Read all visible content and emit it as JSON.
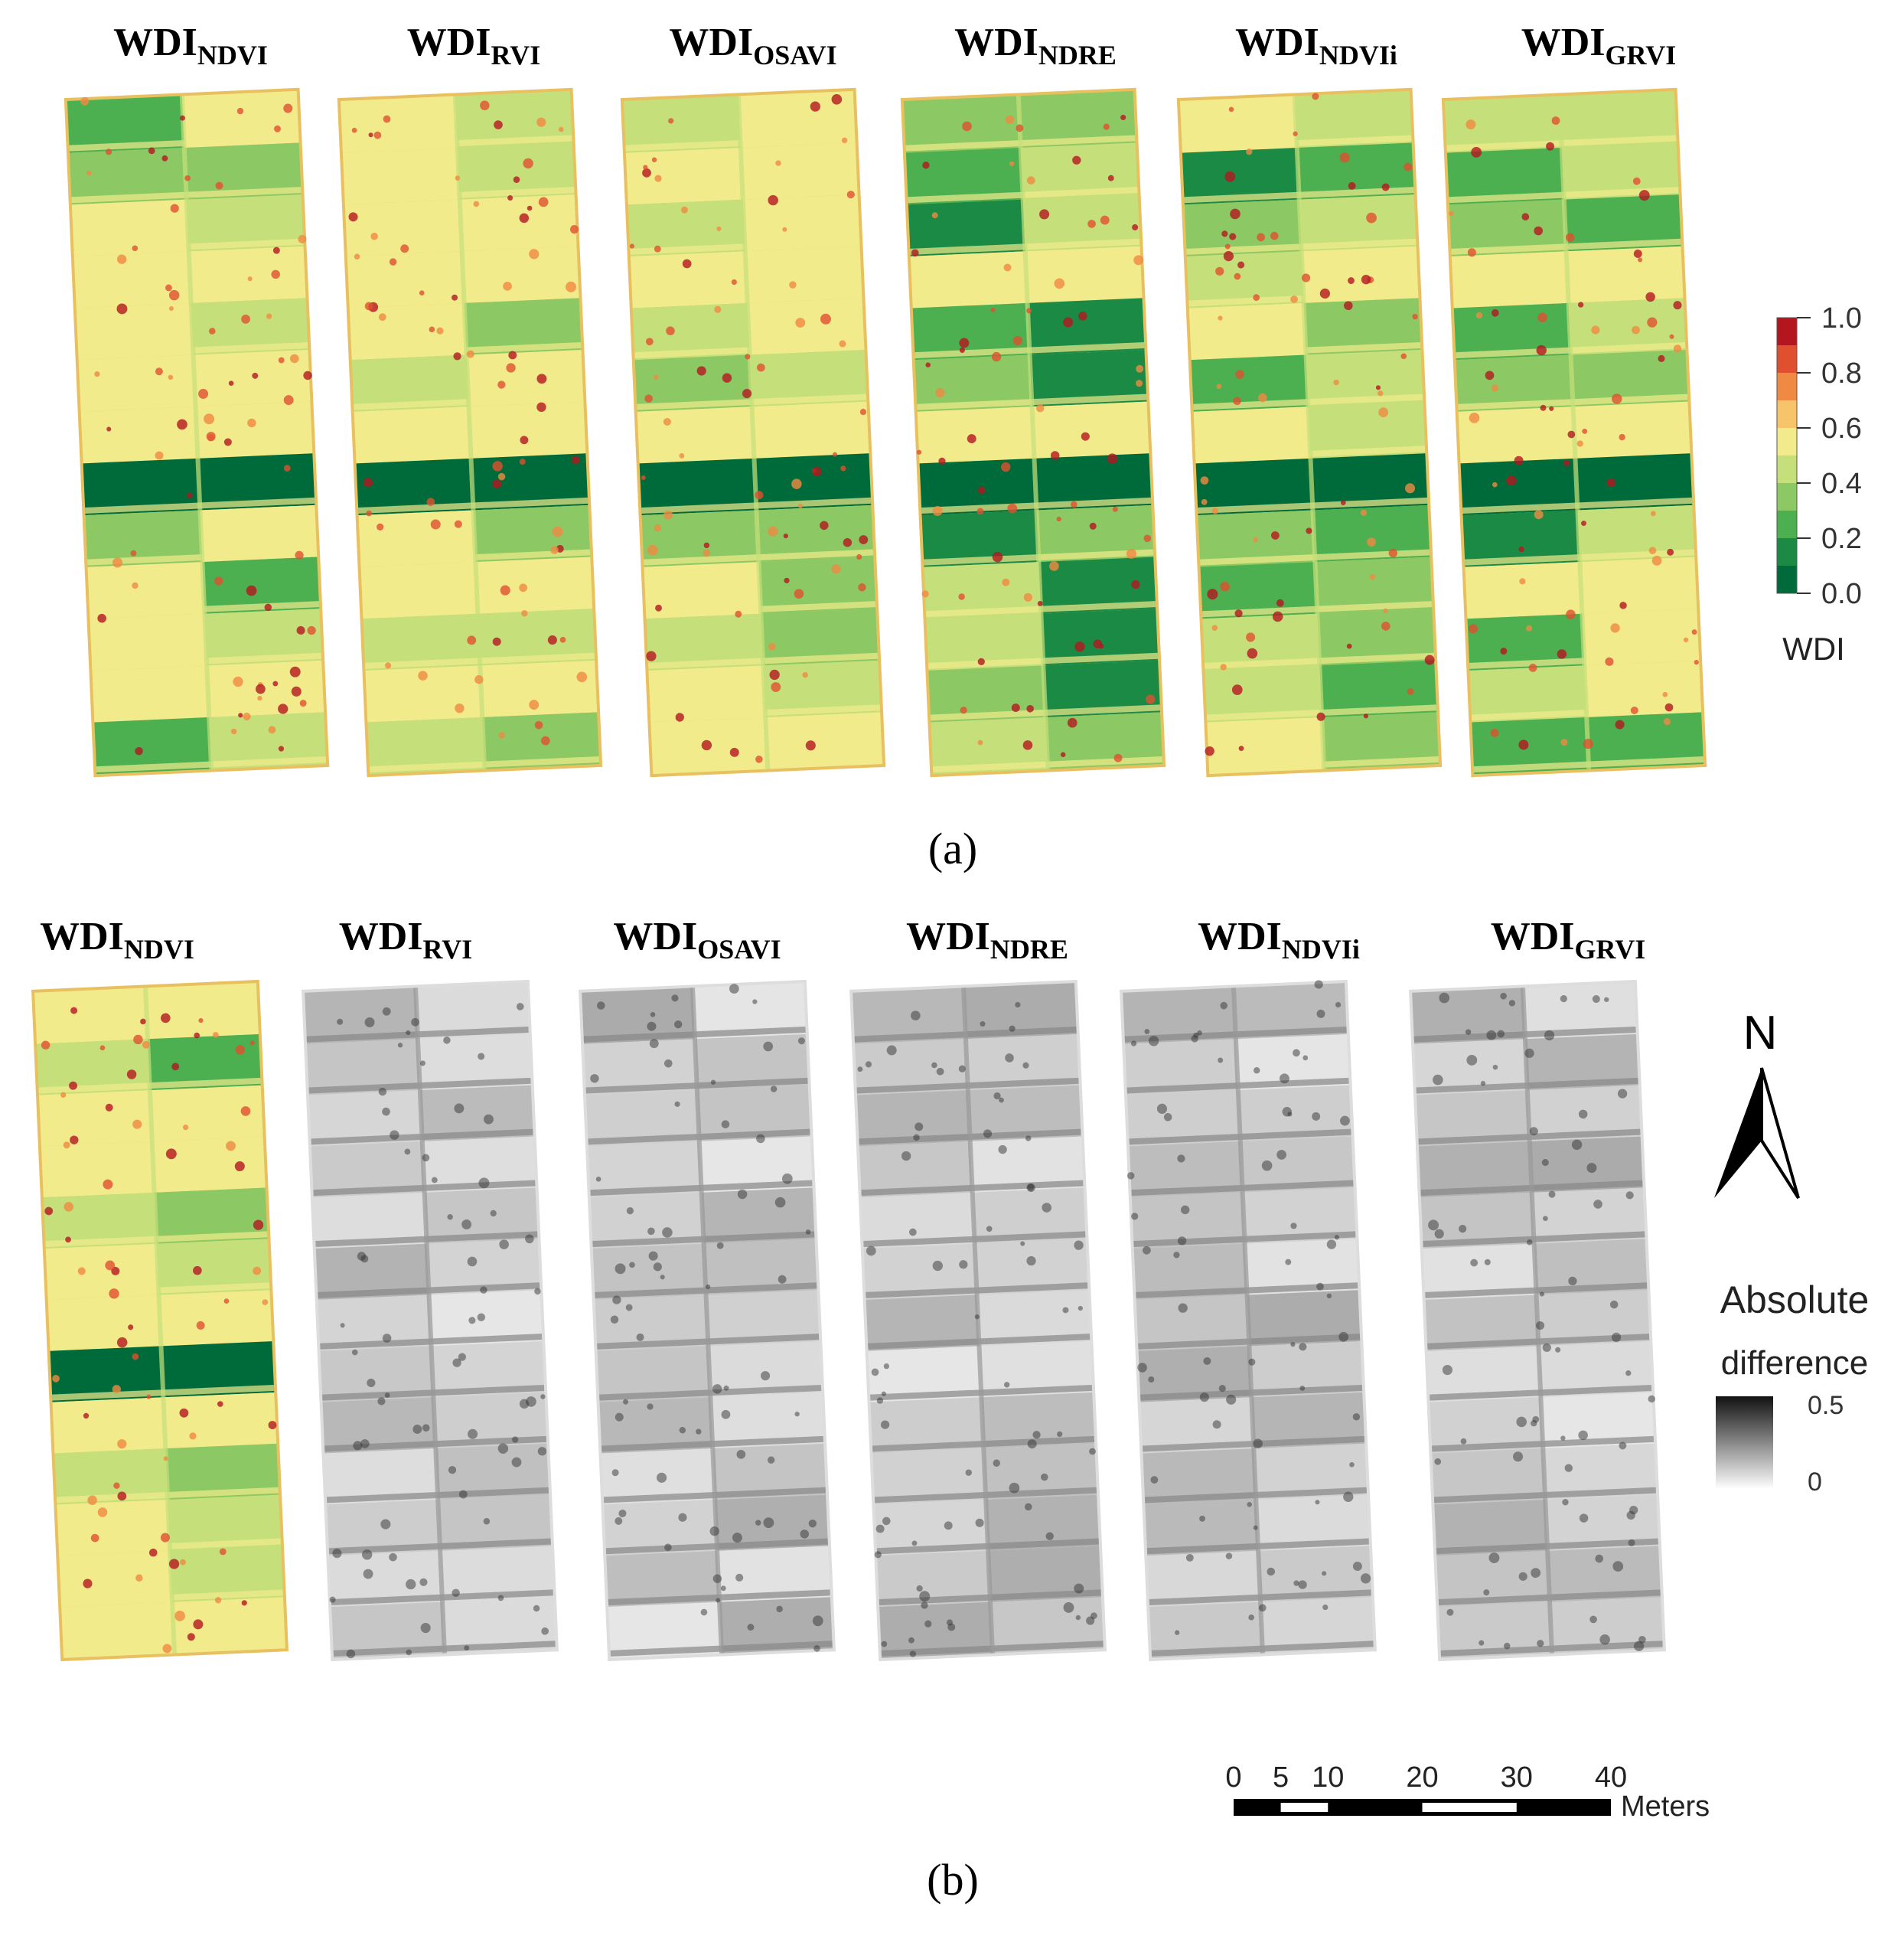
{
  "panel_a": {
    "maps": [
      {
        "title": "WDI",
        "subscript": "NDVI"
      },
      {
        "title": "WDI",
        "subscript": "RVI"
      },
      {
        "title": "WDI",
        "subscript": "OSAVI"
      },
      {
        "title": "WDI",
        "subscript": "NDRE"
      },
      {
        "title": "WDI",
        "subscript": "NDVIi"
      },
      {
        "title": "WDI",
        "subscript": "GRVI"
      }
    ],
    "legend": {
      "label": "WDI",
      "ticks": [
        {
          "value": 0,
          "label": "0.0"
        },
        0.2,
        0.4,
        0.6,
        0.8,
        {
          "value": 1,
          "label": "1.0"
        }
      ],
      "range": [
        0,
        1
      ],
      "colors": [
        "#006b3a",
        "#1a8a45",
        "#4caf50",
        "#8cc863",
        "#c5e07a",
        "#f2eb8c",
        "#f7c46a",
        "#f08a42",
        "#e0502f",
        "#b4161f"
      ]
    },
    "caption": "(a)"
  },
  "panel_b": {
    "maps": [
      {
        "title": "WDI",
        "subscript": "NDVI"
      },
      {
        "title": "WDI",
        "subscript": "RVI"
      },
      {
        "title": "WDI",
        "subscript": "OSAVI"
      },
      {
        "title": "WDI",
        "subscript": "NDRE"
      },
      {
        "title": "WDI",
        "subscript": "NDVIi"
      },
      {
        "title": "WDI",
        "subscript": "GRVI"
      }
    ],
    "north": "N",
    "legend": {
      "label_line1": "Absolute",
      "label_line2": "difference",
      "ticks": [
        0.5,
        0
      ],
      "range": [
        0,
        0.5
      ]
    },
    "scale_bar": {
      "ticks": [
        0,
        5,
        10,
        20,
        30,
        40
      ],
      "unit": "Meters"
    },
    "caption": "(b)"
  }
}
